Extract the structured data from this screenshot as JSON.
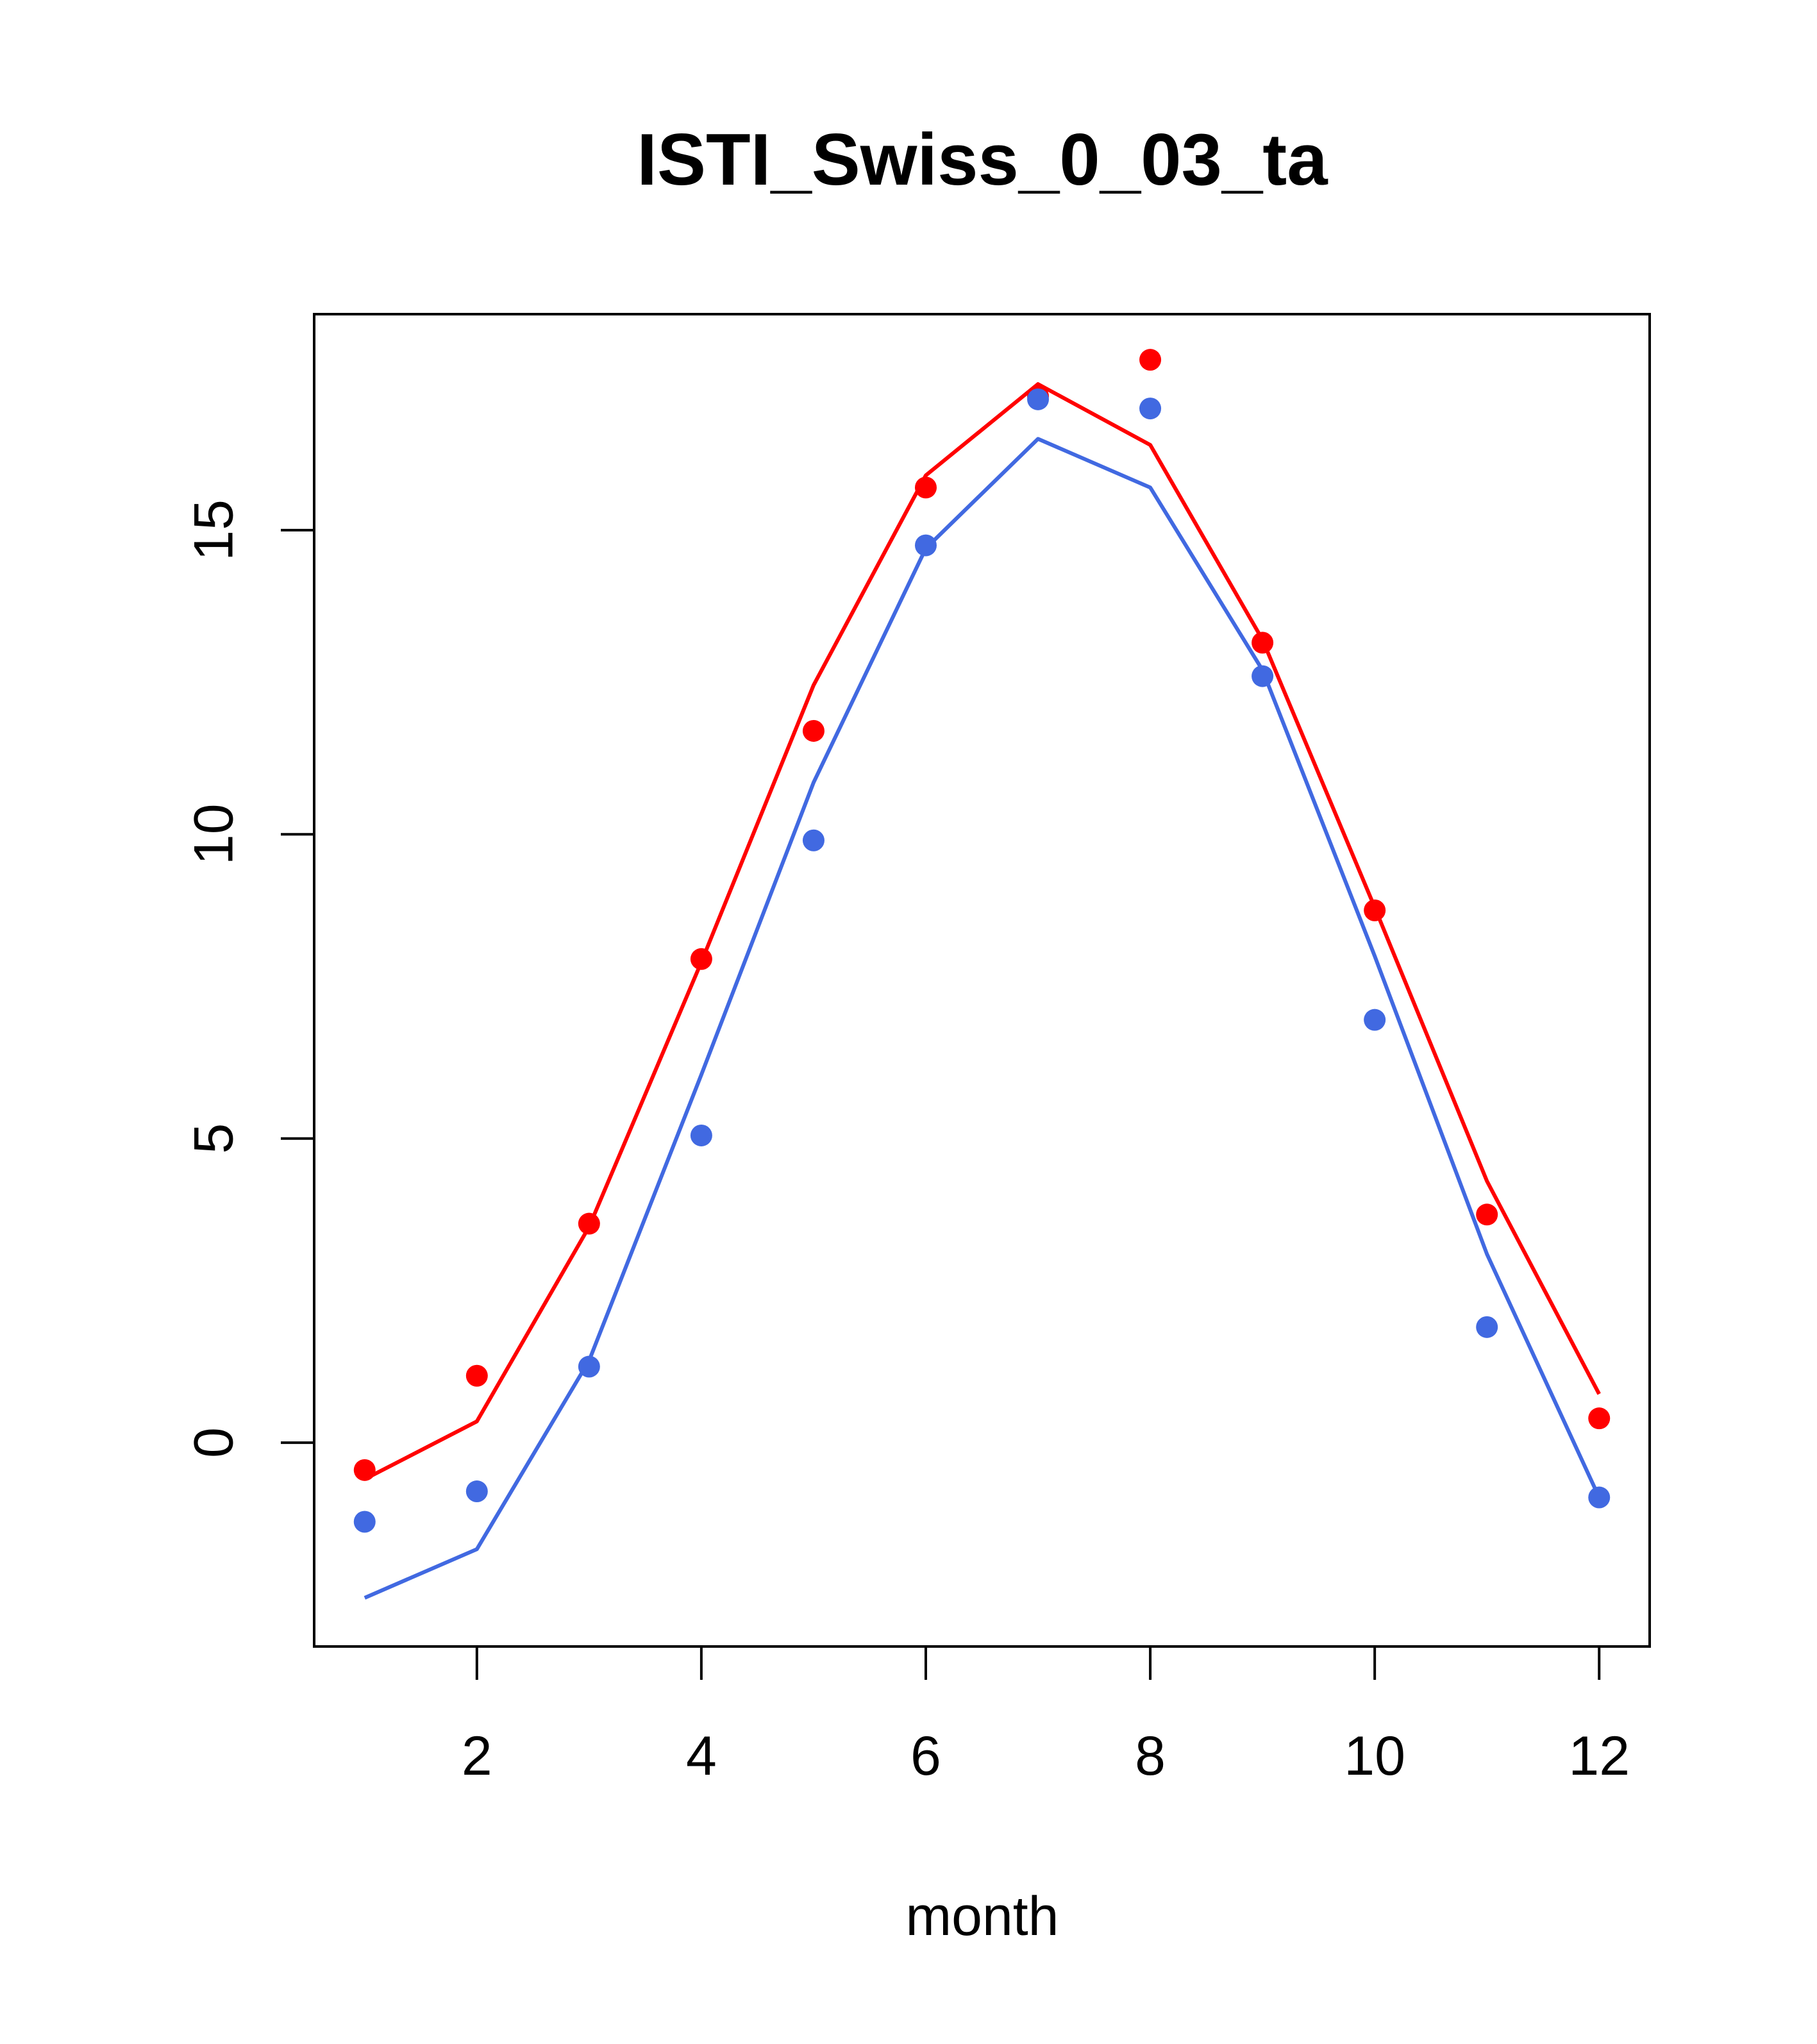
{
  "chart_data": {
    "type": "line",
    "title": "ISTI_Swiss_0_03_ta",
    "xlabel": "month",
    "ylabel": "",
    "xlim": [
      0.55,
      12.45
    ],
    "ylim": [
      -3.35,
      18.55
    ],
    "x_ticks": [
      2,
      4,
      6,
      8,
      10,
      12
    ],
    "y_ticks": [
      0,
      5,
      10,
      15
    ],
    "x": [
      1,
      2,
      3,
      4,
      5,
      6,
      7,
      8,
      9,
      10,
      11,
      12
    ],
    "series": [
      {
        "color": "#ff0000",
        "line": [
          -0.6,
          0.35,
          3.55,
          7.9,
          12.45,
          15.9,
          17.4,
          16.4,
          13.2,
          8.8,
          4.3,
          0.8
        ],
        "points": [
          -0.45,
          1.1,
          3.6,
          7.95,
          11.7,
          15.7,
          17.2,
          17.8,
          13.15,
          8.75,
          3.75,
          0.4
        ]
      },
      {
        "color": "#4169e1",
        "line": [
          -2.55,
          -1.75,
          1.35,
          6.05,
          10.85,
          14.7,
          16.5,
          15.7,
          12.7,
          8.0,
          3.1,
          -0.9
        ],
        "points": [
          -1.3,
          -0.8,
          1.25,
          5.05,
          9.9,
          14.75,
          17.15,
          17.0,
          12.6,
          6.95,
          1.9,
          -0.9
        ]
      }
    ],
    "grid": false,
    "legend": "none"
  }
}
